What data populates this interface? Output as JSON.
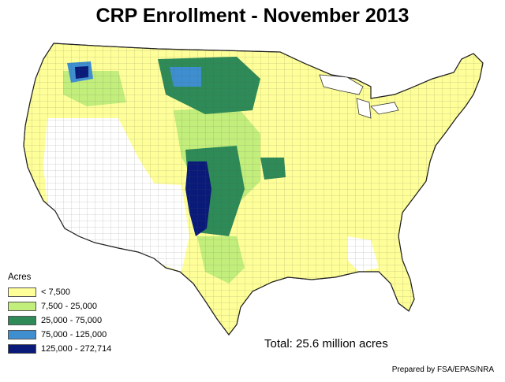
{
  "title": "CRP Enrollment - November 2013",
  "legend": {
    "title": "Acres",
    "items": [
      {
        "label": "< 7,500",
        "color": "#ffff99"
      },
      {
        "label": "7,500 - 25,000",
        "color": "#c2ee7c"
      },
      {
        "label": "25,000 - 75,000",
        "color": "#2e8b57"
      },
      {
        "label": "75,000 - 125,000",
        "color": "#3f8fd0"
      },
      {
        "label": "125,000 - 272,714",
        "color": "#0a1a78"
      }
    ]
  },
  "total": "Total: 25.6 million acres",
  "credit": "Prepared by FSA/EPAS/NRA",
  "map": {
    "colors": {
      "none": "#ffffff",
      "c1": "#ffff99",
      "c2": "#c2ee7c",
      "c3": "#2e8b57",
      "c4": "#3f8fd0",
      "c5": "#0a1a78",
      "border": "#555555"
    }
  }
}
